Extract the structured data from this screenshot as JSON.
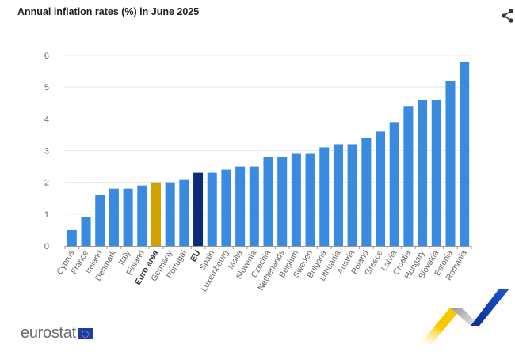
{
  "header": {
    "title": "Annual inflation rates (%) in June 2025",
    "share_icon": "share-icon"
  },
  "chart_data": {
    "type": "bar",
    "title": "Annual inflation rates (%) in June 2025",
    "xlabel": "",
    "ylabel": "",
    "ylim": [
      0,
      6
    ],
    "yticks": [
      0,
      1,
      2,
      3,
      4,
      5,
      6
    ],
    "grid": true,
    "legend": "none",
    "categories": [
      "Cyprus",
      "France",
      "Ireland",
      "Denmark",
      "Italy",
      "Finland",
      "Euro area",
      "Germany",
      "Portugal",
      "EU",
      "Spain",
      "Luxembourg",
      "Malta",
      "Slovenia",
      "Czechia",
      "Netherlands",
      "Belgium",
      "Sweden",
      "Bulgaria",
      "Lithuania",
      "Austria",
      "Poland",
      "Greece",
      "Latvia",
      "Croatia",
      "Hungary",
      "Slovakia",
      "Estonia",
      "Romania"
    ],
    "values": [
      0.5,
      0.9,
      1.6,
      1.8,
      1.8,
      1.9,
      2.0,
      2.0,
      2.1,
      2.3,
      2.3,
      2.4,
      2.5,
      2.5,
      2.8,
      2.8,
      2.9,
      2.9,
      3.1,
      3.2,
      3.2,
      3.4,
      3.6,
      3.9,
      4.4,
      4.6,
      4.6,
      5.2,
      5.8
    ],
    "bold_categories": [
      "Euro area",
      "EU"
    ],
    "colors": {
      "default": "#3a8be0",
      "Euro area": "#cfa400",
      "EU": "#0b2b78"
    }
  },
  "footer": {
    "logo_text": "eurostat"
  }
}
